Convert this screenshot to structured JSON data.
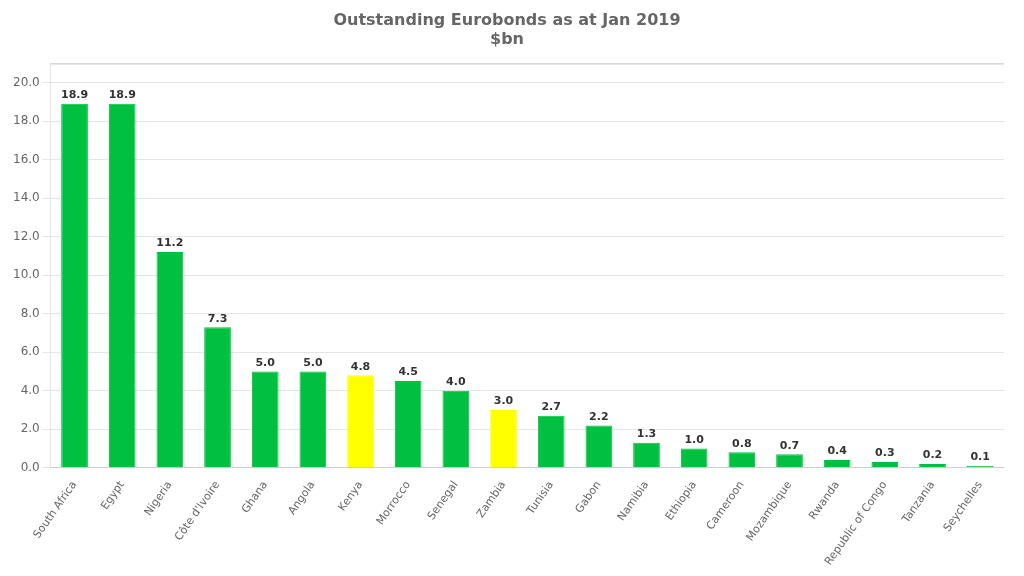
{
  "chart_data": {
    "type": "bar",
    "title": "Outstanding Eurobonds as at Jan 2019\n$bn",
    "categories": [
      "South Africa",
      "Egypt",
      "Nigeria",
      "Côte d'Ivoire",
      "Ghana",
      "Angola",
      "Kenya",
      "Morrocco",
      "Senegal",
      "Zambia",
      "Tunisia",
      "Gabon",
      "Namibia",
      "Ethiopia",
      "Cameroon",
      "Mozambique",
      "Rwanda",
      "Republic of Congo",
      "Tanzania",
      "Seychelles"
    ],
    "values": [
      18.9,
      18.9,
      11.2,
      7.3,
      5.0,
      5.0,
      4.8,
      4.5,
      4.0,
      3.0,
      2.7,
      2.2,
      1.3,
      1.0,
      0.8,
      0.7,
      0.4,
      0.3,
      0.2,
      0.1
    ],
    "value_labels": [
      "18.9",
      "18.9",
      "11.2",
      "7.3",
      "5.0",
      "5.0",
      "4.8",
      "4.5",
      "4.0",
      "3.0",
      "2.7",
      "2.2",
      "1.3",
      "1.0",
      "0.8",
      "0.7",
      "0.4",
      "0.3",
      "0.2",
      "0.1"
    ],
    "colors": [
      "#00C040",
      "#00C040",
      "#00C040",
      "#00C040",
      "#00C040",
      "#00C040",
      "#FFFF00",
      "#00C040",
      "#00C040",
      "#FFFF00",
      "#00C040",
      "#00C040",
      "#00C040",
      "#00C040",
      "#00C040",
      "#00C040",
      "#00C040",
      "#00C040",
      "#00C040",
      "#00C040"
    ],
    "ylim": [
      0,
      21
    ],
    "yticks": [
      {
        "value": 0,
        "label": "0.0"
      },
      {
        "value": 2,
        "label": "2.0"
      },
      {
        "value": 4,
        "label": "4.0"
      },
      {
        "value": 6,
        "label": "6.0"
      },
      {
        "value": 8,
        "label": "8.0"
      },
      {
        "value": 10,
        "label": "10.0"
      },
      {
        "value": 12,
        "label": "12.0"
      },
      {
        "value": 14,
        "label": "14.0"
      },
      {
        "value": 16,
        "label": "16.0"
      },
      {
        "value": 18,
        "label": "18.0"
      },
      {
        "value": 20,
        "label": "20.0"
      }
    ],
    "grid": true,
    "data_labels": true
  }
}
